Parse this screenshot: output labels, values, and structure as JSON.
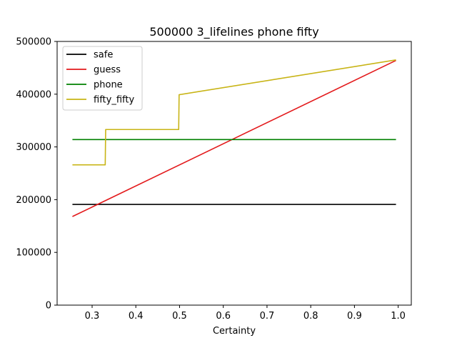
{
  "chart_data": {
    "type": "line",
    "title": "500000 3_lifelines phone fifty",
    "xlabel": "Certainty",
    "ylabel": "",
    "xlim": [
      0.22,
      1.03
    ],
    "ylim": [
      0,
      500000
    ],
    "x_ticks": [
      0.3,
      0.4,
      0.5,
      0.6,
      0.7,
      0.8,
      0.9,
      1.0
    ],
    "x_tick_labels": [
      "0.3",
      "0.4",
      "0.5",
      "0.6",
      "0.7",
      "0.8",
      "0.9",
      "1.0"
    ],
    "y_ticks": [
      0,
      100000,
      200000,
      300000,
      400000,
      500000
    ],
    "y_tick_labels": [
      "0",
      "100000",
      "200000",
      "300000",
      "400000",
      "500000"
    ],
    "grid": false,
    "legend_position": "top-left",
    "series": [
      {
        "name": "safe",
        "color": "#000000",
        "x": [
          0.255,
          0.995
        ],
        "y": [
          191000,
          191000
        ]
      },
      {
        "name": "guess",
        "color": "#e31a1c",
        "x": [
          0.255,
          0.995
        ],
        "y": [
          168000,
          464000
        ]
      },
      {
        "name": "phone",
        "color": "#008000",
        "x": [
          0.255,
          0.995
        ],
        "y": [
          314000,
          314000
        ]
      },
      {
        "name": "fifty_fifty",
        "color": "#c8b416",
        "x": [
          0.255,
          0.33,
          0.331,
          0.498,
          0.499,
          0.995
        ],
        "y": [
          266000,
          266000,
          333000,
          333000,
          399000,
          465000
        ]
      }
    ]
  }
}
